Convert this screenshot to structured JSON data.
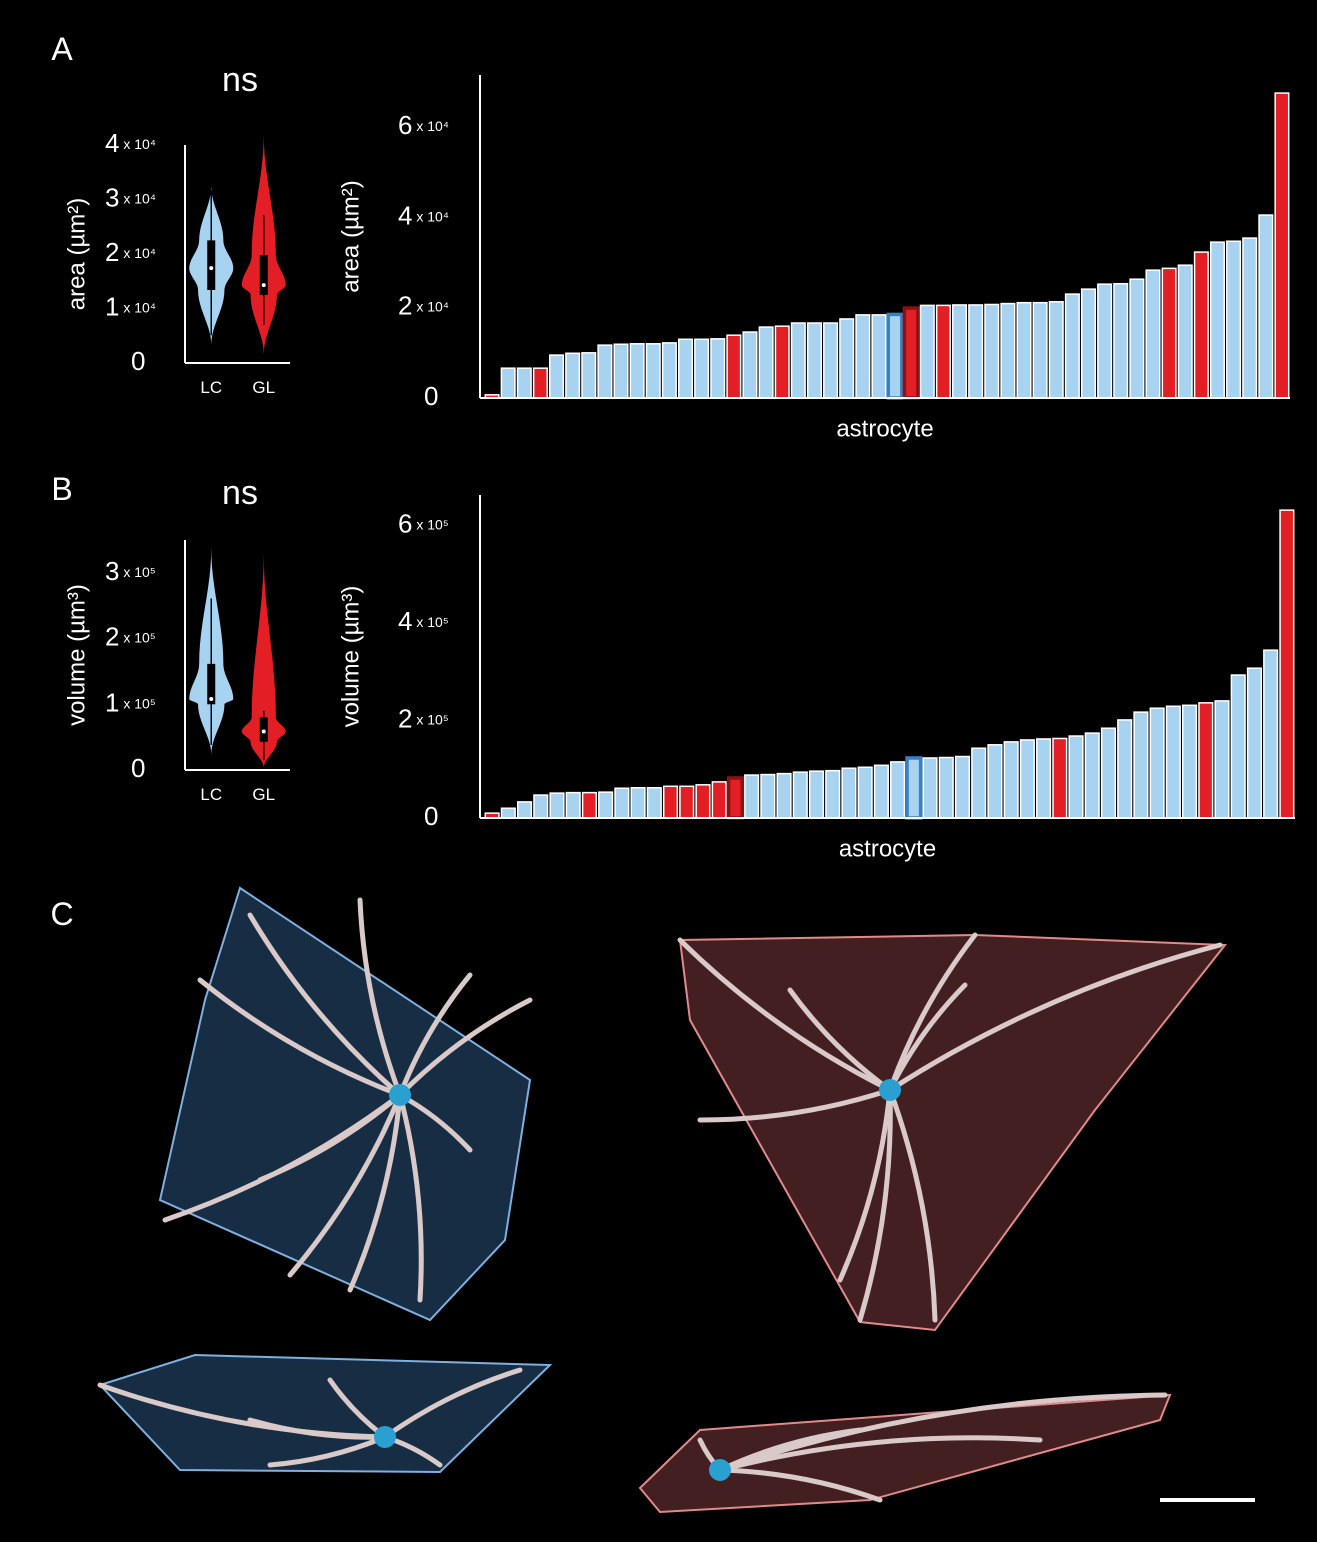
{
  "panels": [
    "A",
    "B",
    "C"
  ],
  "chart_data": [
    {
      "type": "violin",
      "title": "ns",
      "ylabel": "area (µm²)",
      "categories": [
        "LC",
        "GL"
      ],
      "colors": [
        "#a8d3f0",
        "#e31e24"
      ],
      "min": [
        3300,
        1500
      ],
      "whisker_low": [
        5100,
        7000
      ],
      "q1": [
        13400,
        12500
      ],
      "median": [
        17400,
        14300
      ],
      "q3": [
        22500,
        19800
      ],
      "whisker_high": [
        31700,
        27100
      ],
      "max": [
        32500,
        42000
      ],
      "ylim": [
        0,
        40000
      ],
      "yticks": [
        0,
        {
          "value": 10000,
          "label": "1 x 10⁴"
        },
        {
          "value": 20000,
          "label": "2 x 10⁴"
        },
        {
          "value": 30000,
          "label": "3 x 10⁴"
        },
        {
          "value": 40000,
          "label": "4 x 10⁴"
        }
      ]
    },
    {
      "type": "bar",
      "ylabel": "area (µm²)",
      "xlabel": "astrocyte",
      "values": [
        700,
        6600,
        6600,
        6600,
        9500,
        9900,
        10000,
        11700,
        11900,
        12000,
        12000,
        12200,
        13000,
        13000,
        13100,
        13900,
        14600,
        15700,
        15900,
        16600,
        16600,
        16600,
        17500,
        18400,
        18400,
        18500,
        19900,
        20500,
        20500,
        20600,
        20600,
        20700,
        20900,
        21100,
        21100,
        21300,
        23000,
        24100,
        25200,
        25300,
        26300,
        28300,
        28700,
        29400,
        32300,
        34500,
        34700,
        35400,
        40500,
        67500
      ],
      "colors": [
        "#e31e24",
        "#a8d3f0",
        "#a8d3f0",
        "#e31e24",
        "#a8d3f0",
        "#a8d3f0",
        "#a8d3f0",
        "#a8d3f0",
        "#a8d3f0",
        "#a8d3f0",
        "#a8d3f0",
        "#a8d3f0",
        "#a8d3f0",
        "#a8d3f0",
        "#a8d3f0",
        "#e31e24",
        "#a8d3f0",
        "#a8d3f0",
        "#e31e24",
        "#a8d3f0",
        "#a8d3f0",
        "#a8d3f0",
        "#a8d3f0",
        "#a8d3f0",
        "#a8d3f0",
        "#a8d3f0",
        "#e31e24",
        "#a8d3f0",
        "#e31e24",
        "#a8d3f0",
        "#a8d3f0",
        "#a8d3f0",
        "#a8d3f0",
        "#a8d3f0",
        "#a8d3f0",
        "#a8d3f0",
        "#a8d3f0",
        "#a8d3f0",
        "#a8d3f0",
        "#a8d3f0",
        "#a8d3f0",
        "#a8d3f0",
        "#e31e24",
        "#a8d3f0",
        "#e31e24",
        "#a8d3f0",
        "#a8d3f0",
        "#a8d3f0",
        "#a8d3f0",
        "#e31e24"
      ],
      "highlight": [
        25,
        26
      ],
      "highlight_strokes": [
        "#3a7fc4",
        "#8b1212"
      ],
      "ylim": [
        0,
        71500
      ],
      "yticks": [
        0,
        {
          "value": 20000,
          "label": "2 x 10⁴"
        },
        {
          "value": 40000,
          "label": "4 x 10⁴"
        },
        {
          "value": 60000,
          "label": "6 x 10⁴"
        }
      ]
    },
    {
      "type": "violin",
      "title": "ns",
      "ylabel": "volume (µm³)",
      "categories": [
        "LC",
        "GL"
      ],
      "colors": [
        "#a8d3f0",
        "#e31e24"
      ],
      "min": [
        23000,
        3000
      ],
      "whisker_low": [
        38000,
        15000
      ],
      "q1": [
        100000,
        43000
      ],
      "median": [
        108000,
        58500
      ],
      "q3": [
        161500,
        80000
      ],
      "whisker_high": [
        261000,
        90000
      ],
      "max": [
        338000,
        331000
      ],
      "ylim": [
        0,
        350000
      ],
      "yticks": [
        0,
        {
          "value": 100000,
          "label": "1 x 10⁵"
        },
        {
          "value": 200000,
          "label": "2 x 10⁵"
        },
        {
          "value": 300000,
          "label": "3 x 10⁵"
        }
      ]
    },
    {
      "type": "bar",
      "ylabel": "volume (µm³)",
      "xlabel": "astrocyte",
      "values": [
        10000,
        20000,
        33000,
        47000,
        51000,
        52000,
        52000,
        53000,
        61000,
        62000,
        62000,
        65000,
        65000,
        68000,
        74000,
        82000,
        88000,
        89000,
        91000,
        94000,
        96000,
        97000,
        102000,
        104000,
        108000,
        115000,
        123000,
        123000,
        124000,
        126000,
        143000,
        150000,
        156000,
        160000,
        162000,
        163000,
        168000,
        174000,
        184000,
        201000,
        217000,
        225000,
        229000,
        231000,
        236000,
        240000,
        293000,
        307000,
        344000,
        631000
      ],
      "colors": [
        "#e31e24",
        "#a8d3f0",
        "#a8d3f0",
        "#a8d3f0",
        "#a8d3f0",
        "#a8d3f0",
        "#e31e24",
        "#a8d3f0",
        "#a8d3f0",
        "#a8d3f0",
        "#a8d3f0",
        "#e31e24",
        "#e31e24",
        "#e31e24",
        "#e31e24",
        "#e31e24",
        "#a8d3f0",
        "#a8d3f0",
        "#a8d3f0",
        "#a8d3f0",
        "#a8d3f0",
        "#a8d3f0",
        "#a8d3f0",
        "#a8d3f0",
        "#a8d3f0",
        "#a8d3f0",
        "#a8d3f0",
        "#a8d3f0",
        "#a8d3f0",
        "#a8d3f0",
        "#a8d3f0",
        "#a8d3f0",
        "#a8d3f0",
        "#a8d3f0",
        "#a8d3f0",
        "#e31e24",
        "#a8d3f0",
        "#a8d3f0",
        "#a8d3f0",
        "#a8d3f0",
        "#a8d3f0",
        "#a8d3f0",
        "#a8d3f0",
        "#a8d3f0",
        "#e31e24",
        "#a8d3f0",
        "#a8d3f0",
        "#a8d3f0",
        "#a8d3f0",
        "#e31e24"
      ],
      "highlight": [
        15,
        26
      ],
      "highlight_strokes": [
        "#8b1212",
        "#3a7fc4"
      ],
      "ylim": [
        0,
        662000
      ],
      "yticks": [
        0,
        {
          "value": 200000,
          "label": "2 x 10⁵"
        },
        {
          "value": 400000,
          "label": "4 x 10⁵"
        },
        {
          "value": 600000,
          "label": "6 x 10⁵"
        }
      ]
    }
  ]
}
